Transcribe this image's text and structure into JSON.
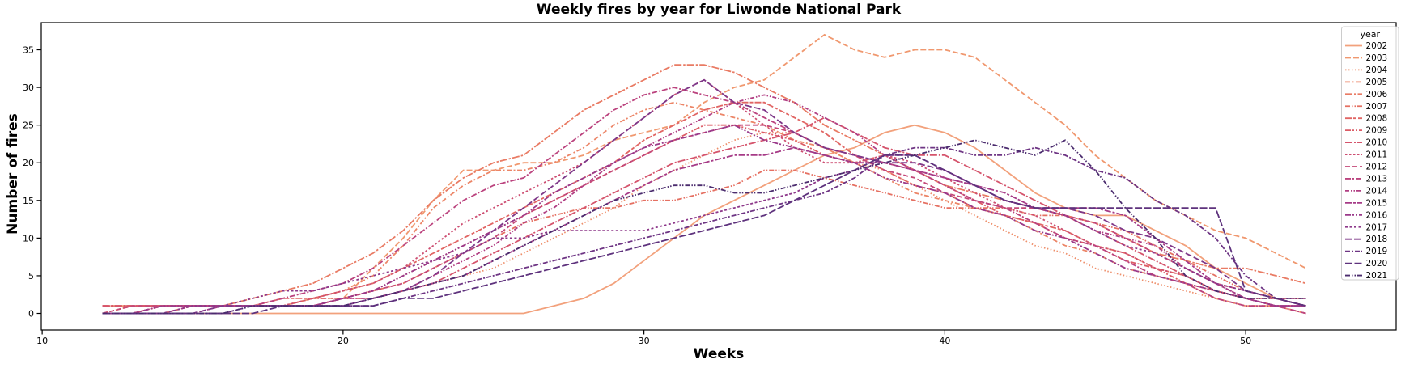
{
  "chart_data": {
    "type": "line",
    "title": "Weekly fires by year for Liwonde National Park",
    "xlabel": "Weeks",
    "ylabel": "Number of fires",
    "legend_title": "year",
    "legend_position": "upper right",
    "grid": false,
    "xlim": [
      9.97,
      55.0
    ],
    "ylim": [
      -2.2,
      38.6
    ],
    "xticks": [
      10,
      20,
      30,
      40,
      50
    ],
    "yticks": [
      0,
      5,
      10,
      15,
      20,
      25,
      30,
      35
    ],
    "x_weeks": [
      12,
      13,
      14,
      15,
      16,
      17,
      18,
      19,
      20,
      21,
      22,
      23,
      24,
      25,
      26,
      27,
      28,
      29,
      30,
      31,
      32,
      33,
      34,
      35,
      36,
      37,
      38,
      39,
      40,
      41,
      42,
      43,
      44,
      45,
      46,
      47,
      48,
      49,
      50,
      51,
      52
    ],
    "series": [
      {
        "name": "2002",
        "color": "#f2a17c",
        "dash": "",
        "values": [
          0,
          0,
          0,
          0,
          0,
          0,
          0,
          0,
          0,
          0,
          0,
          0,
          0,
          0,
          0,
          1,
          2,
          4,
          7,
          10,
          13,
          15,
          17,
          19,
          21,
          22,
          24,
          25,
          24,
          22,
          19,
          16,
          14,
          13,
          13,
          11,
          9,
          6,
          4,
          2,
          1
        ]
      },
      {
        "name": "2003",
        "color": "#f0986f",
        "dash": "7,3",
        "values": [
          1,
          1,
          1,
          1,
          1,
          1,
          1,
          2,
          2,
          6,
          10,
          15,
          19,
          19,
          20,
          20,
          21,
          23,
          24,
          25,
          28,
          30,
          31,
          34,
          37,
          35,
          34,
          35,
          35,
          34,
          31,
          28,
          25,
          21,
          18,
          15,
          13,
          11,
          10,
          8,
          6
        ]
      },
      {
        "name": "2004",
        "color": "#ee8f6b",
        "dash": "1.5,2.5",
        "values": [
          0,
          0,
          1,
          1,
          1,
          1,
          1,
          1,
          2,
          2,
          3,
          4,
          5,
          6,
          8,
          10,
          12,
          14,
          17,
          19,
          21,
          23,
          24,
          24,
          22,
          20,
          19,
          17,
          15,
          13,
          11,
          9,
          8,
          6,
          5,
          4,
          3,
          2,
          1,
          1,
          0
        ]
      },
      {
        "name": "2005",
        "color": "#ec8567",
        "dash": "6,2.5,2,2.5",
        "values": [
          0,
          0,
          0,
          1,
          1,
          1,
          1,
          2,
          3,
          5,
          9,
          14,
          17,
          19,
          19,
          20,
          22,
          25,
          27,
          28,
          27,
          26,
          25,
          23,
          22,
          20,
          18,
          16,
          15,
          14,
          13,
          11,
          9,
          8,
          6,
          5,
          4,
          2,
          1,
          1,
          0
        ]
      },
      {
        "name": "2006",
        "color": "#e97b64",
        "dash": "9,2,2.5,2",
        "values": [
          1,
          1,
          1,
          1,
          1,
          2,
          3,
          4,
          6,
          8,
          11,
          15,
          18,
          20,
          21,
          24,
          27,
          29,
          31,
          33,
          33,
          32,
          30,
          28,
          25,
          23,
          21,
          19,
          17,
          16,
          15,
          14,
          13,
          12,
          10,
          8,
          7,
          6,
          6,
          5,
          4
        ]
      },
      {
        "name": "2007",
        "color": "#e57062",
        "dash": "6,2,1.5,2,1.5,2",
        "values": [
          1,
          1,
          1,
          1,
          1,
          1,
          1,
          1,
          2,
          3,
          4,
          6,
          8,
          10,
          12,
          13,
          14,
          14,
          15,
          15,
          16,
          17,
          19,
          19,
          18,
          17,
          16,
          15,
          14,
          14,
          14,
          13,
          13,
          12,
          11,
          9,
          7,
          5,
          3,
          2,
          2
        ]
      },
      {
        "name": "2008",
        "color": "#e16563",
        "dash": "8,2,4,2",
        "values": [
          1,
          1,
          1,
          1,
          1,
          1,
          2,
          2,
          3,
          4,
          6,
          8,
          10,
          12,
          14,
          16,
          18,
          20,
          23,
          25,
          27,
          28,
          28,
          26,
          24,
          21,
          19,
          17,
          16,
          14,
          13,
          12,
          11,
          9,
          8,
          6,
          5,
          3,
          2,
          2,
          2
        ]
      },
      {
        "name": "2009",
        "color": "#dc5c66",
        "dash": "7,2,2,2,2,2",
        "values": [
          0,
          1,
          1,
          1,
          1,
          1,
          1,
          2,
          2,
          3,
          5,
          7,
          9,
          11,
          13,
          15,
          17,
          19,
          21,
          23,
          25,
          25,
          24,
          23,
          21,
          20,
          21,
          19,
          17,
          15,
          13,
          12,
          10,
          9,
          7,
          6,
          4,
          3,
          2,
          1,
          1
        ]
      },
      {
        "name": "2010",
        "color": "#d5546c",
        "dash": "9,2,2,2",
        "values": [
          1,
          1,
          1,
          1,
          1,
          1,
          1,
          1,
          2,
          2,
          3,
          4,
          6,
          8,
          10,
          12,
          14,
          16,
          18,
          20,
          21,
          22,
          23,
          24,
          26,
          24,
          22,
          21,
          21,
          19,
          17,
          15,
          13,
          11,
          9,
          7,
          5,
          3,
          2,
          1,
          1
        ]
      },
      {
        "name": "2011",
        "color": "#cd4e72",
        "dash": "2.5,2.5",
        "values": [
          0,
          0,
          1,
          1,
          1,
          1,
          1,
          2,
          3,
          4,
          6,
          9,
          12,
          14,
          16,
          18,
          20,
          23,
          26,
          29,
          31,
          28,
          25,
          22,
          20,
          20,
          21,
          20,
          18,
          16,
          14,
          13,
          11,
          9,
          8,
          6,
          5,
          3,
          2,
          2,
          1
        ]
      },
      {
        "name": "2012",
        "color": "#c44878",
        "dash": "6,3",
        "values": [
          0,
          1,
          1,
          1,
          1,
          1,
          1,
          1,
          2,
          3,
          4,
          6,
          8,
          10,
          13,
          15,
          17,
          19,
          21,
          23,
          24,
          25,
          25,
          24,
          22,
          21,
          19,
          18,
          16,
          15,
          14,
          14,
          13,
          12,
          10,
          8,
          6,
          4,
          3,
          2,
          1
        ]
      },
      {
        "name": "2013",
        "color": "#bb437e",
        "dash": "7,2,2,2",
        "values": [
          0,
          0,
          1,
          1,
          1,
          1,
          2,
          3,
          4,
          6,
          9,
          12,
          15,
          17,
          18,
          21,
          24,
          27,
          29,
          30,
          29,
          28,
          26,
          24,
          22,
          21,
          20,
          19,
          17,
          15,
          14,
          12,
          10,
          9,
          7,
          5,
          4,
          2,
          1,
          1,
          0
        ]
      },
      {
        "name": "2014",
        "color": "#b13e83",
        "dash": "5,2,1.5,2,1.5,2",
        "values": [
          0,
          0,
          0,
          1,
          1,
          1,
          1,
          1,
          2,
          2,
          3,
          5,
          7,
          9,
          12,
          14,
          17,
          20,
          22,
          24,
          26,
          28,
          29,
          28,
          26,
          24,
          21,
          19,
          18,
          17,
          15,
          14,
          13,
          11,
          10,
          9,
          6,
          4,
          2,
          1,
          1
        ]
      },
      {
        "name": "2015",
        "color": "#a63b87",
        "dash": "8,2,3,2",
        "values": [
          0,
          0,
          0,
          0,
          1,
          1,
          1,
          1,
          1,
          2,
          3,
          4,
          5,
          7,
          9,
          11,
          13,
          15,
          17,
          19,
          20,
          21,
          21,
          22,
          21,
          20,
          20,
          19,
          18,
          17,
          16,
          14,
          14,
          14,
          13,
          10,
          7,
          4,
          2,
          1,
          1
        ]
      },
      {
        "name": "2016",
        "color": "#9a398a",
        "dash": "7,2,2,2,2,2",
        "values": [
          0,
          0,
          1,
          1,
          1,
          1,
          1,
          1,
          2,
          3,
          5,
          7,
          9,
          11,
          13,
          16,
          18,
          20,
          22,
          23,
          24,
          25,
          23,
          22,
          21,
          20,
          18,
          17,
          16,
          14,
          13,
          11,
          10,
          8,
          6,
          5,
          4,
          3,
          2,
          1,
          1
        ]
      },
      {
        "name": "2017",
        "color": "#8d388a",
        "dash": "3,2.5",
        "values": [
          0,
          0,
          0,
          1,
          1,
          2,
          3,
          3,
          4,
          5,
          6,
          7,
          8,
          10,
          10,
          11,
          11,
          11,
          11,
          12,
          13,
          14,
          15,
          16,
          18,
          19,
          21,
          21,
          19,
          17,
          15,
          14,
          13,
          11,
          9,
          8,
          6,
          4,
          3,
          2,
          2
        ]
      },
      {
        "name": "2018",
        "color": "#7e3788",
        "dash": "8,3",
        "values": [
          0,
          0,
          0,
          0,
          1,
          1,
          1,
          1,
          1,
          2,
          3,
          5,
          8,
          11,
          14,
          17,
          20,
          23,
          26,
          29,
          31,
          28,
          27,
          24,
          22,
          21,
          20,
          20,
          19,
          17,
          15,
          14,
          14,
          13,
          11,
          10,
          8,
          6,
          3,
          2,
          1
        ]
      },
      {
        "name": "2019",
        "color": "#6e3584",
        "dash": "6,2,2,2",
        "values": [
          0,
          0,
          0,
          0,
          0,
          1,
          1,
          1,
          1,
          1,
          2,
          3,
          4,
          5,
          6,
          7,
          8,
          9,
          10,
          11,
          12,
          13,
          14,
          15,
          16,
          18,
          21,
          22,
          22,
          21,
          21,
          22,
          21,
          19,
          18,
          15,
          13,
          10,
          5,
          2,
          1
        ]
      },
      {
        "name": "2020",
        "color": "#5e327d",
        "dash": "9,2.5",
        "values": [
          0,
          0,
          0,
          0,
          0,
          0,
          1,
          1,
          1,
          1,
          2,
          2,
          3,
          4,
          5,
          6,
          7,
          8,
          9,
          10,
          11,
          12,
          13,
          15,
          17,
          19,
          21,
          21,
          19,
          17,
          15,
          14,
          14,
          14,
          14,
          14,
          14,
          14,
          3,
          2,
          1
        ]
      },
      {
        "name": "2021",
        "color": "#4b2c6e",
        "dash": "6,2,1.5,2,1.5,2",
        "values": [
          0,
          0,
          0,
          0,
          0,
          1,
          1,
          1,
          1,
          2,
          3,
          4,
          5,
          7,
          9,
          11,
          13,
          15,
          16,
          17,
          17,
          16,
          16,
          17,
          18,
          19,
          20,
          21,
          22,
          23,
          22,
          21,
          23,
          19,
          14,
          10,
          5,
          3,
          2,
          2,
          2
        ]
      }
    ]
  }
}
